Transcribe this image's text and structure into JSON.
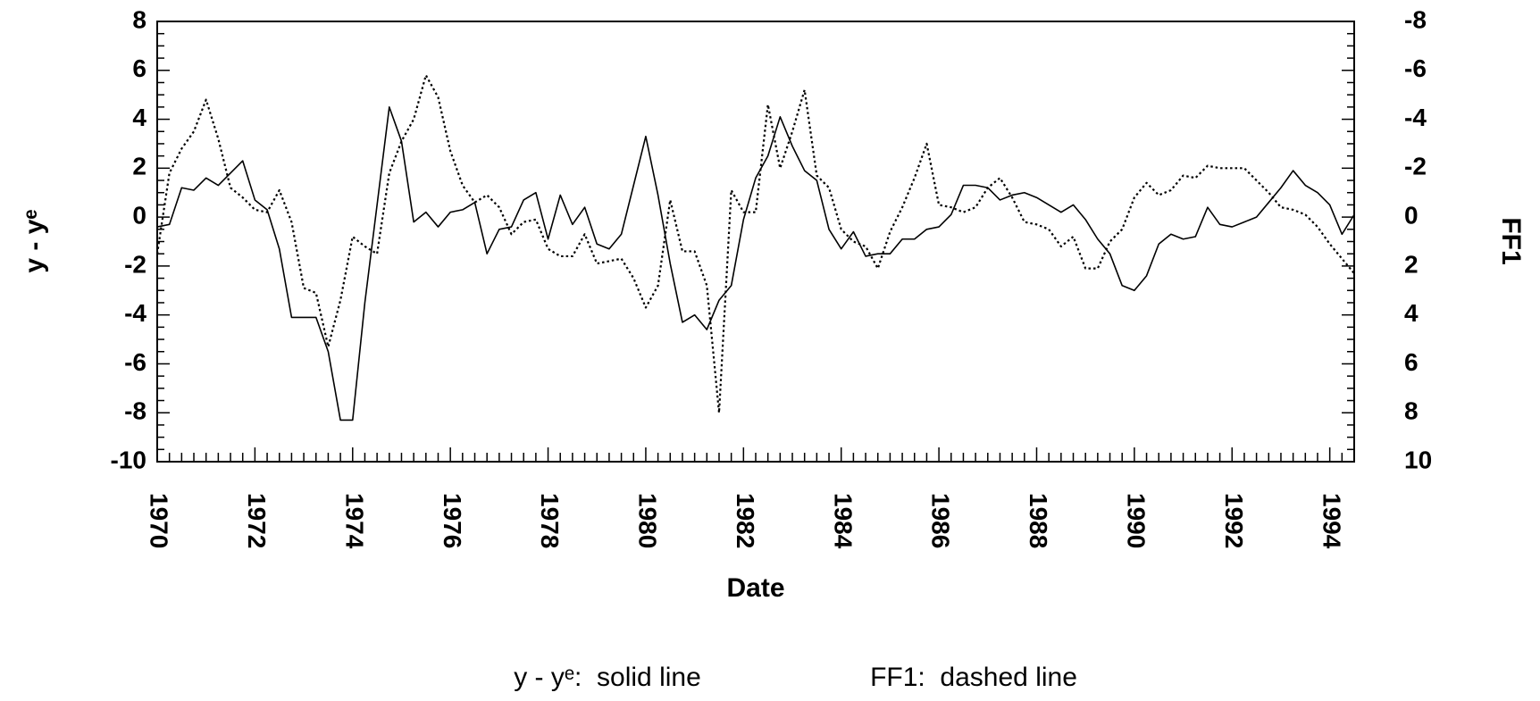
{
  "chart_data": {
    "type": "line",
    "xlabel": "Date",
    "x": [
      1970,
      1970.25,
      1970.5,
      1970.75,
      1971,
      1971.25,
      1971.5,
      1971.75,
      1972,
      1972.25,
      1972.5,
      1972.75,
      1973,
      1973.25,
      1973.5,
      1973.75,
      1974,
      1974.25,
      1974.5,
      1974.75,
      1975,
      1975.25,
      1975.5,
      1975.75,
      1976,
      1976.25,
      1976.5,
      1976.75,
      1977,
      1977.25,
      1977.5,
      1977.75,
      1978,
      1978.25,
      1978.5,
      1978.75,
      1979,
      1979.25,
      1979.5,
      1979.75,
      1980,
      1980.25,
      1980.5,
      1980.75,
      1981,
      1981.25,
      1981.5,
      1981.75,
      1982,
      1982.25,
      1982.5,
      1982.75,
      1983,
      1983.25,
      1983.5,
      1983.75,
      1984,
      1984.25,
      1984.5,
      1984.75,
      1985,
      1985.25,
      1985.5,
      1985.75,
      1986,
      1986.25,
      1986.5,
      1986.75,
      1987,
      1987.25,
      1987.5,
      1987.75,
      1988,
      1988.25,
      1988.5,
      1988.75,
      1989,
      1989.25,
      1989.5,
      1989.75,
      1990,
      1990.25,
      1990.5,
      1990.75,
      1991,
      1991.25,
      1991.5,
      1991.75,
      1992,
      1992.25,
      1992.5,
      1992.75,
      1993,
      1993.25,
      1993.5,
      1993.75,
      1994,
      1994.25,
      1994.5
    ],
    "series": [
      {
        "name": "y - yᵉ",
        "color": "#000000",
        "style": "solid",
        "axis": "y",
        "values": [
          -0.4,
          -0.3,
          1.2,
          1.1,
          1.6,
          1.3,
          1.8,
          2.3,
          0.7,
          0.3,
          -1.3,
          -4.1,
          -4.1,
          -4.1,
          -5.5,
          -8.3,
          -8.3,
          -3.5,
          0.5,
          4.5,
          3.1,
          -0.2,
          0.2,
          -0.4,
          0.2,
          0.3,
          0.6,
          -1.5,
          -0.5,
          -0.4,
          0.7,
          1.0,
          -0.9,
          0.9,
          -0.3,
          0.4,
          -1.1,
          -1.3,
          -0.7,
          1.3,
          3.3,
          0.9,
          -1.9,
          -4.3,
          -4.0,
          -4.6,
          -3.4,
          -2.8,
          -0.1,
          1.6,
          2.5,
          4.1,
          2.9,
          1.9,
          1.5,
          -0.5,
          -1.3,
          -0.6,
          -1.6,
          -1.5,
          -1.5,
          -0.9,
          -0.9,
          -0.5,
          -0.4,
          0.1,
          1.3,
          1.3,
          1.2,
          0.7,
          0.9,
          1.0,
          0.8,
          0.5,
          0.2,
          0.5,
          -0.1,
          -0.9,
          -1.5,
          -2.8,
          -3.0,
          -2.4,
          -1.1,
          -0.7,
          -0.9,
          -0.8,
          0.4,
          -0.3,
          -0.4,
          -0.2,
          0.0,
          0.6,
          1.2,
          1.9,
          1.3,
          1.0,
          0.5,
          -0.7,
          0.1
        ]
      },
      {
        "name": "FF1",
        "color": "#000000",
        "style": "dashed",
        "axis": "y2",
        "values": [
          1.5,
          -1.8,
          -2.8,
          -3.5,
          -4.8,
          -3.2,
          -1.2,
          -0.8,
          -0.3,
          -0.2,
          -1.1,
          0.2,
          2.9,
          3.1,
          5.3,
          3.4,
          0.8,
          1.2,
          1.5,
          -1.8,
          -3.1,
          -4.0,
          -5.8,
          -4.9,
          -2.7,
          -1.3,
          -0.6,
          -0.9,
          -0.4,
          0.7,
          0.2,
          0.1,
          1.3,
          1.6,
          1.6,
          0.7,
          1.9,
          1.8,
          1.7,
          2.5,
          3.7,
          2.8,
          -0.7,
          1.4,
          1.4,
          2.8,
          8.0,
          -1.1,
          -0.2,
          -0.2,
          -4.6,
          -2.0,
          -3.5,
          -5.2,
          -1.7,
          -1.2,
          0.5,
          1.0,
          1.2,
          2.1,
          0.6,
          -0.4,
          -1.6,
          -3.0,
          -0.5,
          -0.4,
          -0.2,
          -0.4,
          -1.2,
          -1.6,
          -0.8,
          0.2,
          0.3,
          0.5,
          1.2,
          0.8,
          2.1,
          2.1,
          1.0,
          0.5,
          -0.8,
          -1.4,
          -0.9,
          -1.1,
          -1.7,
          -1.6,
          -2.1,
          -2.0,
          -2.0,
          -2.0,
          -1.5,
          -1.0,
          -0.4,
          -0.3,
          -0.1,
          0.4,
          1.1,
          1.7,
          2.3
        ]
      }
    ],
    "xlim": [
      1970,
      1994.5
    ],
    "xticks": [
      1970,
      1972,
      1974,
      1976,
      1978,
      1980,
      1982,
      1984,
      1986,
      1988,
      1990,
      1992,
      1994
    ],
    "ylim": [
      -10,
      8
    ],
    "yticks": [
      -10,
      -8,
      -6,
      -4,
      -2,
      0,
      2,
      4,
      6,
      8
    ],
    "y2lim": [
      10,
      -8
    ],
    "y2ticks": [
      10,
      8,
      6,
      4,
      2,
      0,
      -2,
      -4,
      -6,
      -8
    ],
    "grid": false,
    "legend": [
      "y - yᵉ:  solid line",
      "FF1:  dashed line"
    ]
  }
}
